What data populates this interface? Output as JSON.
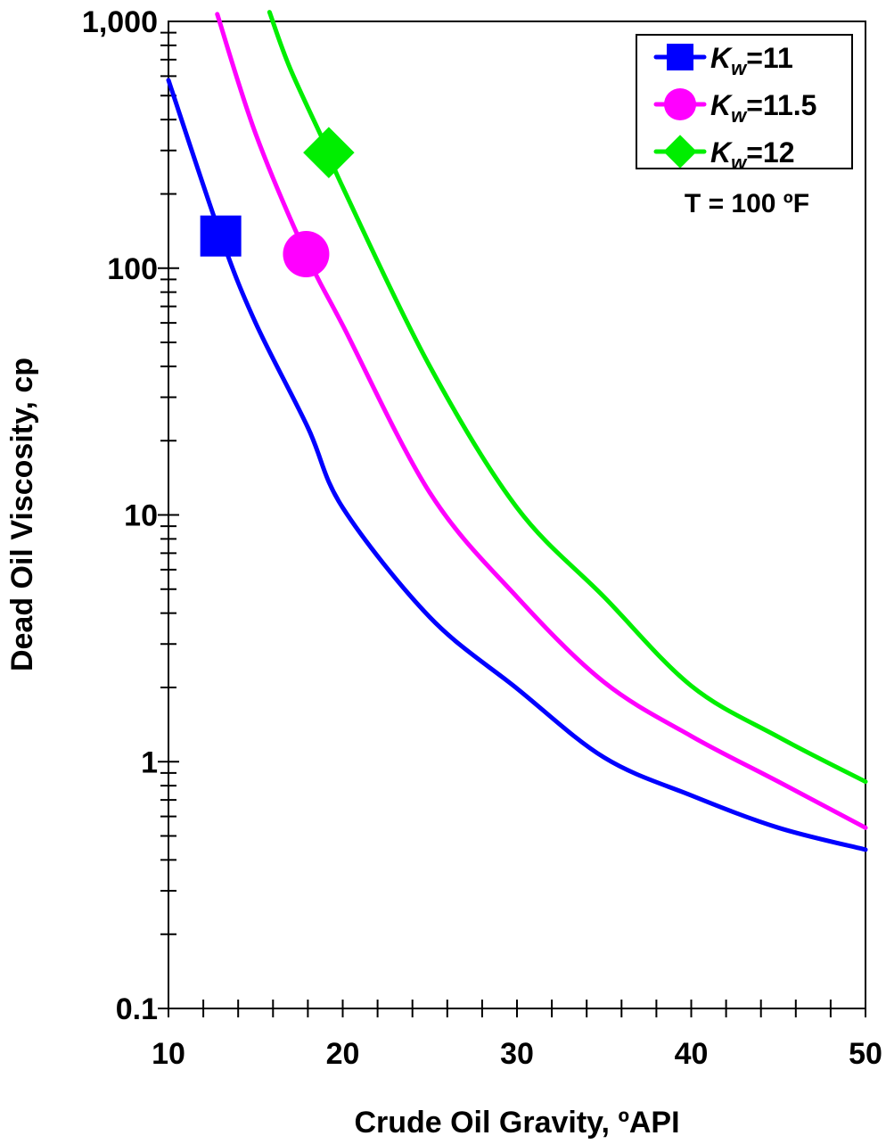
{
  "chart_data": {
    "type": "line",
    "title": "",
    "xlabel": "Crude Oil Gravity, ºAPI",
    "ylabel": "Dead Oil Viscosity, cp",
    "xlim": [
      10,
      50
    ],
    "ylim": [
      0.1,
      1000
    ],
    "yscale": "log",
    "grid": false,
    "legend_placement": "top-right",
    "annotation": "T = 100 ºF",
    "x_ticks": [
      "10",
      "20",
      "30",
      "40",
      "50"
    ],
    "y_ticks": [
      "0.1",
      "1",
      "10",
      "100",
      "1,000"
    ],
    "series": [
      {
        "name": "Kw=11",
        "legend_main": "K",
        "legend_sub": "w",
        "legend_value": "=11",
        "color": "#0000ff",
        "marker": "square",
        "x": [
          10,
          13,
          15,
          18,
          20,
          25,
          30,
          35,
          40,
          45,
          50
        ],
        "y": [
          578,
          135,
          60,
          22.6,
          10.7,
          3.85,
          1.98,
          1.04,
          0.73,
          0.54,
          0.44
        ],
        "marker_point": [
          13,
          135
        ]
      },
      {
        "name": "Kw=11.5",
        "legend_main": "K",
        "legend_sub": "w",
        "legend_value": "=11.5",
        "color": "#ff00ff",
        "marker": "circle",
        "x": [
          12.8,
          15,
          17.9,
          20,
          25,
          30,
          35,
          40,
          45,
          50
        ],
        "y": [
          1070,
          351,
          114,
          58.7,
          12.3,
          4.65,
          2.1,
          1.27,
          0.83,
          0.54
        ],
        "marker_point": [
          17.9,
          114
        ]
      },
      {
        "name": "Kw=12",
        "legend_main": "K",
        "legend_sub": "w",
        "legend_value": "=12",
        "color": "#00ee00",
        "marker": "diamond",
        "x": [
          15.8,
          17,
          19.2,
          20,
          25,
          30,
          35,
          40,
          45,
          50
        ],
        "y": [
          1090,
          640,
          294,
          213,
          40,
          10.7,
          4.65,
          2.03,
          1.26,
          0.83
        ],
        "marker_point": [
          19.2,
          294
        ]
      }
    ]
  }
}
